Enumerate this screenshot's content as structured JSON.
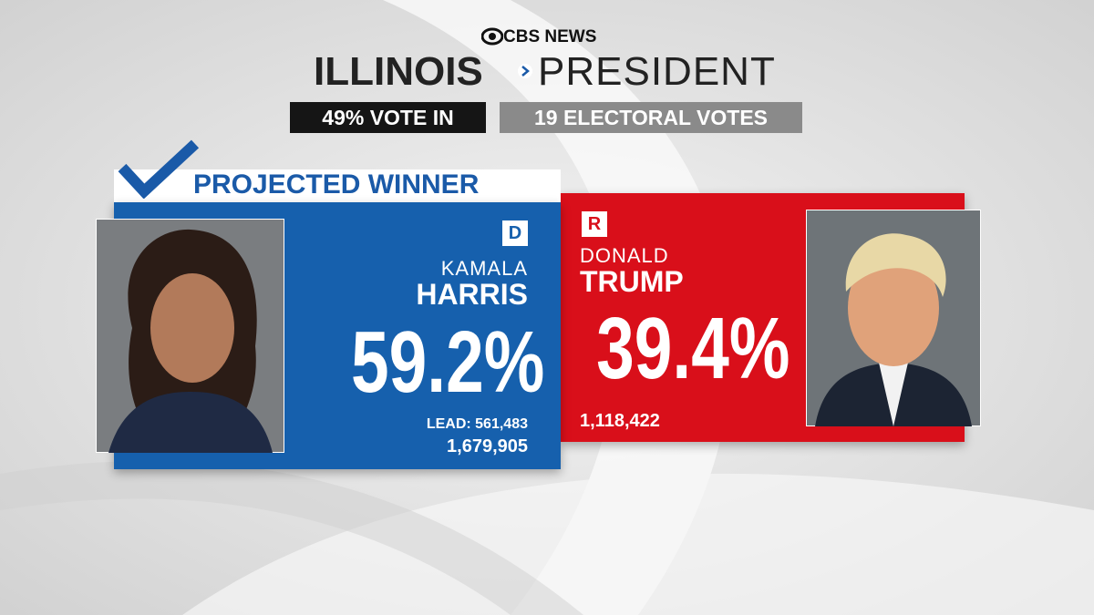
{
  "header": {
    "network": "CBS NEWS",
    "state": "ILLINOIS",
    "race": "PRESIDENT",
    "reporting": "49% VOTE IN",
    "electoral_votes": "19 ELECTORAL VOTES"
  },
  "winner_banner": "PROJECTED WINNER",
  "candidates": [
    {
      "party": "D",
      "first_name": "KAMALA",
      "last_name": "HARRIS",
      "percent": "59.2%",
      "lead": "LEAD: 561,483",
      "votes": "1,679,905"
    },
    {
      "party": "R",
      "first_name": "DONALD",
      "last_name": "TRUMP",
      "percent": "39.4%",
      "votes": "1,118,422"
    }
  ]
}
